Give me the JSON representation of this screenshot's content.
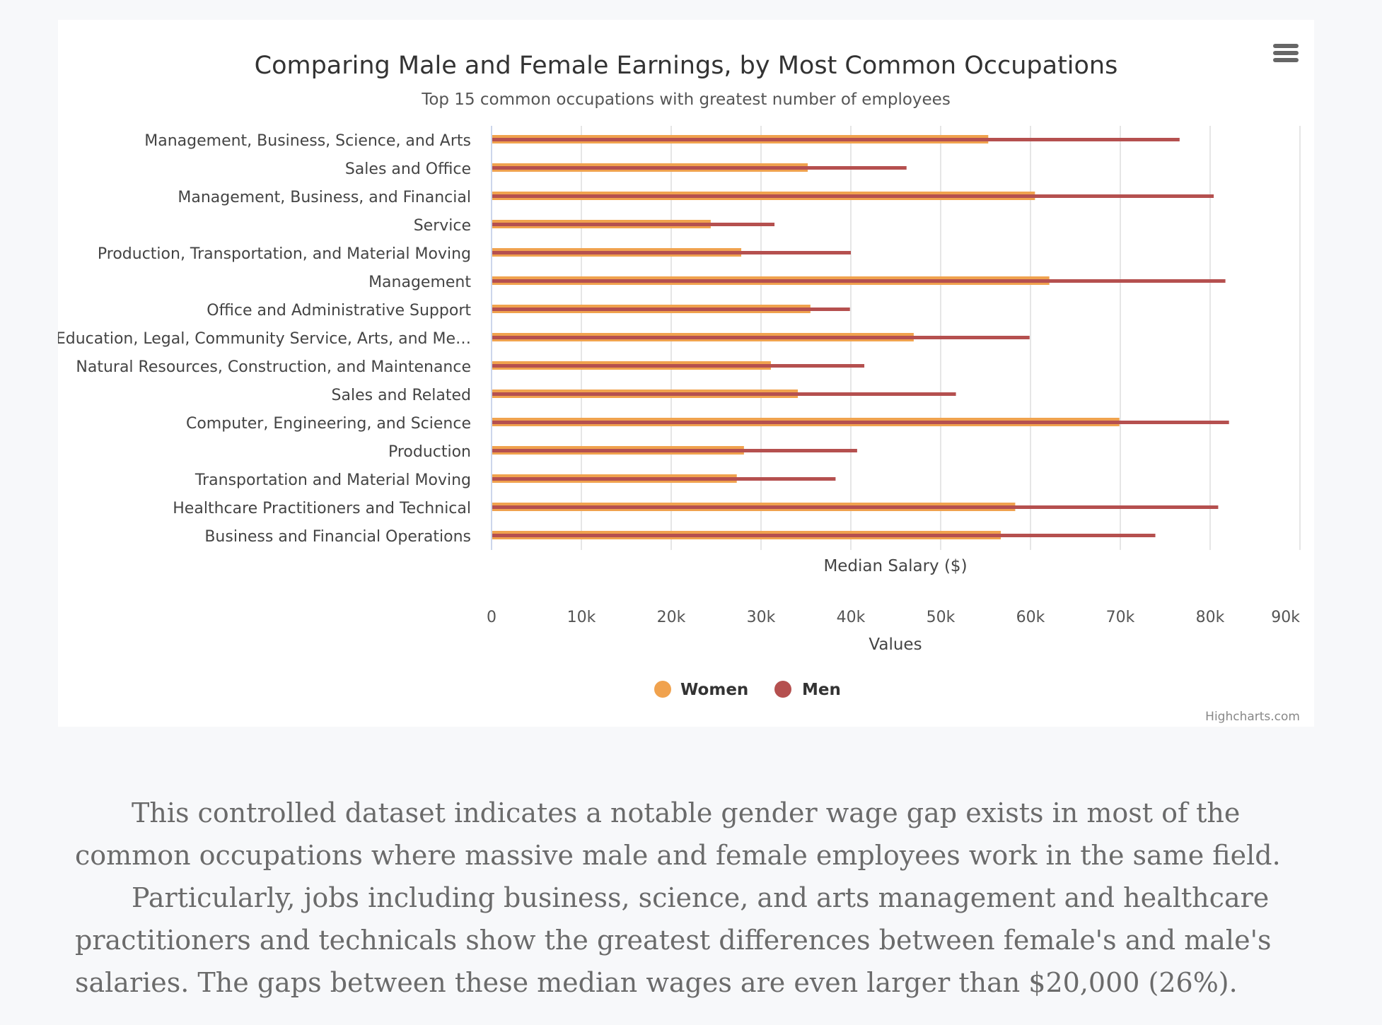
{
  "chart_data": {
    "type": "bar",
    "orientation": "horizontal",
    "title": "Comparing Male and Female Earnings, by Most Common Occupations",
    "subtitle": "Top 15 common occupations with greatest number of employees",
    "xlabel": "Values",
    "ylabel": "Median Salary ($)",
    "xlim": [
      0,
      90000
    ],
    "x_ticks": [
      "0",
      "10k",
      "20k",
      "30k",
      "40k",
      "50k",
      "60k",
      "70k",
      "80k",
      "90k"
    ],
    "grid": true,
    "legend_position": "bottom-center",
    "categories": [
      "Management, Business, Science, and Arts",
      "Sales and Office",
      "Management, Business, and Financial",
      "Service",
      "Production, Transportation, and Material Moving",
      "Management",
      "Office and Administrative Support",
      "Education, Legal, Community Service, Arts, and Me…",
      "Natural Resources, Construction, and Maintenance",
      "Sales and Related",
      "Computer, Engineering, and Science",
      "Production",
      "Transportation and Material Moving",
      "Healthcare Practitioners and Technical",
      "Business and Financial Operations"
    ],
    "series": [
      {
        "name": "Women",
        "color": "#f0a24e",
        "values": [
          55300,
          35200,
          60500,
          24400,
          27800,
          62100,
          35500,
          47000,
          31100,
          34100,
          69900,
          28100,
          27300,
          58300,
          56700
        ]
      },
      {
        "name": "Men",
        "color": "#b5504f",
        "values": [
          76600,
          46200,
          80400,
          31500,
          40000,
          81700,
          39900,
          59900,
          41500,
          51700,
          82100,
          40700,
          38300,
          80900,
          73900
        ]
      }
    ]
  },
  "credits": "Highcharts.com",
  "article": {
    "paragraphs": [
      "This controlled dataset indicates a notable gender wage gap exists in most of the common occupations where massive male and female employees work in the same field.",
      "Particularly, jobs including business, science, and arts management and healthcare practitioners and technicals show the greatest differences between female's and male's salaries. The gaps between these median wages are even larger than $20,000 (26%)."
    ]
  }
}
